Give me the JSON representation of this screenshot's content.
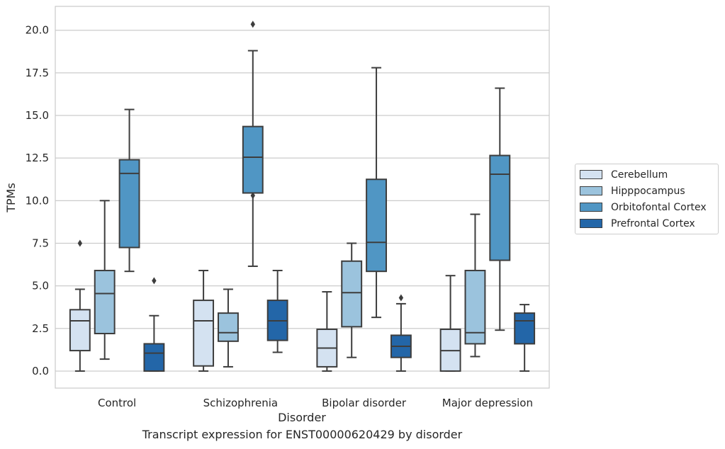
{
  "chart_data": {
    "type": "box",
    "caption": "Transcript expression for ENST00000620429 by disorder",
    "xlabel": "Disorder",
    "ylabel": "TPMs",
    "ylim": [
      -1.0,
      21.4
    ],
    "yticks": [
      "0.0",
      "2.5",
      "5.0",
      "7.5",
      "10.0",
      "12.5",
      "15.0",
      "17.5",
      "20.0"
    ],
    "grid": "horizontal",
    "legend_position": "right",
    "categories": [
      "Control",
      "Schizophrenia",
      "Bipolar disorder",
      "Major depression"
    ],
    "series": [
      {
        "name": "Cerebellum",
        "color": "#d4e2f1",
        "boxes": [
          {
            "whisker_low": 0.0,
            "q1": 1.2,
            "median": 2.95,
            "q3": 3.6,
            "whisker_high": 4.8,
            "outliers": [
              7.5
            ]
          },
          {
            "whisker_low": 0.0,
            "q1": 0.3,
            "median": 2.95,
            "q3": 4.15,
            "whisker_high": 5.9,
            "outliers": []
          },
          {
            "whisker_low": 0.0,
            "q1": 0.25,
            "median": 1.35,
            "q3": 2.45,
            "whisker_high": 4.65,
            "outliers": []
          },
          {
            "whisker_low": 0.0,
            "q1": 0.0,
            "median": 1.2,
            "q3": 2.45,
            "whisker_high": 5.6,
            "outliers": []
          }
        ]
      },
      {
        "name": "Hipppocampus",
        "color": "#9bc3dd",
        "boxes": [
          {
            "whisker_low": 0.7,
            "q1": 2.2,
            "median": 4.55,
            "q3": 5.9,
            "whisker_high": 10.0,
            "outliers": []
          },
          {
            "whisker_low": 0.25,
            "q1": 1.75,
            "median": 2.25,
            "q3": 3.4,
            "whisker_high": 4.8,
            "outliers": []
          },
          {
            "whisker_low": 0.8,
            "q1": 2.6,
            "median": 4.6,
            "q3": 6.45,
            "whisker_high": 7.5,
            "outliers": []
          },
          {
            "whisker_low": 0.85,
            "q1": 1.6,
            "median": 2.25,
            "q3": 5.9,
            "whisker_high": 9.2,
            "outliers": []
          }
        ]
      },
      {
        "name": "Orbitofontal Cortex",
        "color": "#5096c4",
        "boxes": [
          {
            "whisker_low": 5.85,
            "q1": 7.25,
            "median": 11.6,
            "q3": 12.4,
            "whisker_high": 15.35,
            "outliers": []
          },
          {
            "whisker_low": 6.15,
            "q1": 10.45,
            "median": 12.55,
            "q3": 14.35,
            "whisker_high": 18.8,
            "outliers": [
              10.3,
              20.35
            ]
          },
          {
            "whisker_low": 3.15,
            "q1": 5.85,
            "median": 7.55,
            "q3": 11.25,
            "whisker_high": 17.8,
            "outliers": []
          },
          {
            "whisker_low": 2.4,
            "q1": 6.5,
            "median": 11.55,
            "q3": 12.65,
            "whisker_high": 16.6,
            "outliers": []
          }
        ]
      },
      {
        "name": "Prefrontal Cortex",
        "color": "#2366a8",
        "boxes": [
          {
            "whisker_low": 0.0,
            "q1": 0.0,
            "median": 1.05,
            "q3": 1.6,
            "whisker_high": 3.25,
            "outliers": [
              5.3
            ]
          },
          {
            "whisker_low": 1.1,
            "q1": 1.8,
            "median": 2.95,
            "q3": 4.15,
            "whisker_high": 5.9,
            "outliers": []
          },
          {
            "whisker_low": 0.0,
            "q1": 0.8,
            "median": 1.45,
            "q3": 2.1,
            "whisker_high": 3.95,
            "outliers": [
              4.3
            ]
          },
          {
            "whisker_low": 0.0,
            "q1": 1.6,
            "median": 2.95,
            "q3": 3.4,
            "whisker_high": 3.9,
            "outliers": []
          }
        ]
      }
    ]
  }
}
